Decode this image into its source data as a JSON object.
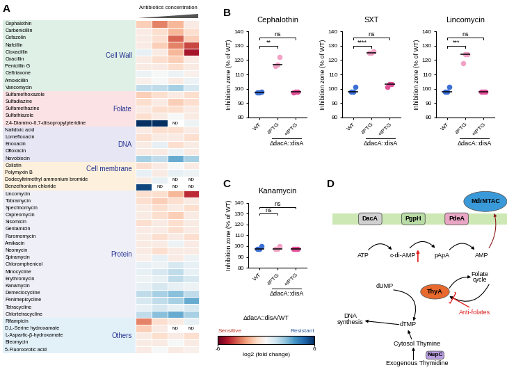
{
  "chart_data": [
    {
      "panel": "A",
      "type": "heatmap",
      "xlabel": "Antibiotics concentration",
      "na_label": "ND",
      "groups": [
        {
          "name": "Cell Wall",
          "color": "#dff0e6",
          "rows": [
            "Cephalothin",
            "Carbenicillin",
            "Cefazolin",
            "Nafcillin",
            "Cloxacillin",
            "Oxacillin",
            "Penicillin G",
            "Ceftriaxone",
            "Amoxicillin",
            "Vancomycin"
          ],
          "values": [
            [
              -1.5,
              -3,
              -2,
              -0.5
            ],
            [
              -0.5,
              -1,
              -2,
              -1
            ],
            [
              -0.5,
              -1,
              -3.5,
              -1.5
            ],
            [
              -0.5,
              -1.5,
              -3,
              -4
            ],
            [
              0.5,
              -0.5,
              -2,
              -5
            ],
            [
              -0.5,
              -1,
              -1.5,
              -0.5
            ],
            [
              -0.5,
              -0.5,
              -1,
              -0.5
            ],
            [
              0.3,
              0,
              0.3,
              -0.3
            ],
            [
              -0.3,
              0,
              -0.5,
              0.3
            ],
            [
              1.5,
              1.5,
              2,
              1
            ]
          ]
        },
        {
          "name": "Folate",
          "color": "#fbe2e4",
          "rows": [
            "Sulfamethoxazole",
            "Sulfadiazine",
            "Sulfamethazine",
            "Sulfathiazole",
            "2,4-Diamino-6,7-diisopropylpteridine"
          ],
          "values": [
            [
              -1.5,
              -1,
              -0.5,
              -1
            ],
            [
              -1,
              -0.5,
              -1.5,
              -1
            ],
            [
              -0.5,
              -1,
              -1,
              -0.5
            ],
            [
              -1,
              -0.5,
              0,
              -0.5
            ],
            [
              6,
              6,
              null,
              0.3
            ]
          ]
        },
        {
          "name": "DNA",
          "color": "#e7e6f4",
          "rows": [
            "Nalidixic acid",
            "Lomefloxacin",
            "Enoxacin",
            "Ofloxacin",
            "Novobiocin"
          ],
          "values": [
            [
              -0.5,
              -1,
              -1,
              -0.5
            ],
            [
              -1,
              -0.5,
              -0.5,
              -1
            ],
            [
              -0.5,
              0.5,
              -1,
              -0.5
            ],
            [
              -0.5,
              -0.5,
              0.3,
              -0.5
            ],
            [
              2,
              1.5,
              3,
              2
            ]
          ]
        },
        {
          "name": "Cell membrane",
          "color": "#fdf0dc",
          "rows": [
            "Colistin",
            "Polymyxin B",
            "Dodecyltrimethyl ammonium bromide",
            "Benzethonium chloride"
          ],
          "values": [
            [
              -1,
              -0.5,
              0,
              -0.5
            ],
            [
              0.5,
              -0.5,
              0.5,
              0.3
            ],
            [
              -0.5,
              0.5,
              null,
              null
            ],
            [
              5.5,
              null,
              null,
              null
            ]
          ]
        },
        {
          "name": "Protein",
          "color": "#efeff7",
          "rows": [
            "Lincomycin",
            "Tobramycin",
            "Spectinomycin",
            "Capreomycin",
            "Sisomicin",
            "Gentamicin",
            "Paromomycin",
            "Amikacin",
            "Neomycin",
            "Spiramycin",
            "Chloramphenicol",
            "Minocycline",
            "Erythromycin",
            "Kanamycin",
            "Demeclocycline",
            "Penimepicycline",
            "Tetracycline",
            "Chlortetracycline"
          ],
          "values": [
            [
              -1,
              -1,
              -2,
              -4.5
            ],
            [
              -1,
              -1.5,
              -1,
              -0.5
            ],
            [
              -0.5,
              -1,
              -0.5,
              -1
            ],
            [
              -0.5,
              -1,
              -1.5,
              -0.5
            ],
            [
              -1,
              -0.5,
              -1,
              -0.5
            ],
            [
              -0.5,
              -0.5,
              -1,
              -0.5
            ],
            [
              -0.5,
              -1,
              -0.5,
              -1
            ],
            [
              -0.5,
              -0.5,
              0.3,
              -0.5
            ],
            [
              -0.5,
              -1,
              -0.5,
              -0.5
            ],
            [
              -0.3,
              0.5,
              -0.5,
              0.3
            ],
            [
              0.5,
              0.3,
              1,
              0.5
            ],
            [
              0.5,
              1,
              1.5,
              0.5
            ],
            [
              0.3,
              0.5,
              1.5,
              1
            ],
            [
              0.5,
              1,
              0.5,
              0.3
            ],
            [
              1.5,
              2,
              2.5,
              1.5
            ],
            [
              1,
              1.5,
              2,
              3
            ],
            [
              0.5,
              1,
              0.5,
              1
            ],
            [
              1.5,
              2.5,
              3,
              2
            ]
          ]
        },
        {
          "name": "Others",
          "color": "#e2f0f8",
          "rows": [
            "Rifampicin",
            "D,L-Serine hydroxamate",
            "L-Aspartic-β-hydroxamate",
            "Bleomycin",
            "5-Fluoroorotic acid"
          ],
          "values": [
            [
              -3,
              -1,
              -0.5,
              0.5
            ],
            [
              -1.5,
              -0.5,
              null,
              null
            ],
            [
              -0.5,
              -1,
              -0.5,
              -1
            ],
            [
              -0.5,
              -0.5,
              0,
              -0.5
            ],
            [
              -0.5,
              0,
              -0.5,
              -0.3
            ]
          ]
        }
      ],
      "colorbar": {
        "title": "ΔdacA::disA/WT",
        "label": "log2 (fold change)",
        "range": [
          -6,
          6
        ],
        "ticks": [
          -6,
          6
        ],
        "low_label": "Sensitive",
        "high_label": "Resistant"
      }
    },
    {
      "panel": "B",
      "type": "scatter",
      "title": "Cephalothin",
      "ylabel": "Inhibition zone (% of WT)",
      "categories": [
        "WT",
        "-IPTG",
        "+IPTG"
      ],
      "values": [
        [
          97.5,
          97.5,
          98
        ],
        [
          116,
          117,
          122
        ],
        [
          97.5,
          98,
          98
        ]
      ],
      "colors": [
        "#3b6fd4",
        "#f2a2c6",
        "#e2509a"
      ],
      "marker": "circle",
      "ylim": [
        80,
        140
      ],
      "yticks": [
        80,
        90,
        100,
        110,
        120,
        130,
        140
      ],
      "group_label": {
        "text": "ΔdacA::disA",
        "categories": [
          "-IPTG",
          "+IPTG"
        ]
      },
      "comparisons": [
        {
          "categories": [
            "WT",
            "-IPTG"
          ],
          "label": "**"
        },
        {
          "categories": [
            "WT",
            "+IPTG"
          ],
          "label": "ns"
        }
      ]
    },
    {
      "type": "scatter",
      "title": "SXT",
      "ylabel": "Inhibition zone (% of WT)",
      "categories": [
        "WT",
        "-IPTG",
        "+IPTG"
      ],
      "values": [
        [
          98,
          98,
          101
        ],
        [
          125,
          125,
          126
        ],
        [
          101,
          103,
          103
        ]
      ],
      "colors": [
        "#3b6fd4",
        "#f2a2c6",
        "#e2509a"
      ],
      "marker": "circle",
      "ylim": [
        80,
        140
      ],
      "yticks": [
        80,
        90,
        100,
        110,
        120,
        130,
        140
      ],
      "group_label": {
        "text": "ΔdacA::disA",
        "categories": [
          "-IPTG",
          "+IPTG"
        ]
      },
      "comparisons": [
        {
          "categories": [
            "WT",
            "-IPTG"
          ],
          "label": "****"
        },
        {
          "categories": [
            "WT",
            "+IPTG"
          ],
          "label": "ns"
        }
      ]
    },
    {
      "type": "scatter",
      "title": "Lincomycin",
      "ylabel": "Inhibition zone (% of WT)",
      "categories": [
        "WT",
        "-IPTG",
        "+IPTG"
      ],
      "values": [
        [
          98,
          98,
          101
        ],
        [
          118,
          124,
          124
        ],
        [
          98,
          98,
          98
        ]
      ],
      "colors": [
        "#3b6fd4",
        "#f2a2c6",
        "#e2509a"
      ],
      "marker": "circle",
      "ylim": [
        80,
        140
      ],
      "yticks": [
        80,
        90,
        100,
        110,
        120,
        130,
        140
      ],
      "group_label": {
        "text": "ΔdacA::disA",
        "categories": [
          "-IPTG",
          "+IPTG"
        ]
      },
      "comparisons": [
        {
          "categories": [
            "WT",
            "-IPTG"
          ],
          "label": "***"
        },
        {
          "categories": [
            "WT",
            "+IPTG"
          ],
          "label": "ns"
        }
      ]
    },
    {
      "panel": "C",
      "type": "scatter",
      "title": "Kanamycin",
      "ylabel": "Inhibition zone (% of WT)",
      "categories": [
        "WT",
        "-IPTG",
        "+IPTG"
      ],
      "values": [
        [
          97.5,
          97.5,
          100
        ],
        [
          97.5,
          97.5,
          100
        ],
        [
          97.5,
          97.5,
          97.5
        ]
      ],
      "colors": [
        "#3b6fd4",
        "#f2a2c6",
        "#e2509a"
      ],
      "marker": "circle",
      "ylim": [
        80,
        140
      ],
      "yticks": [
        80,
        90,
        100,
        110,
        120,
        130,
        140
      ],
      "group_label": {
        "text": "ΔdacA::disA",
        "categories": [
          "-IPTG",
          "+IPTG"
        ]
      },
      "comparisons": [
        {
          "categories": [
            "WT",
            "-IPTG"
          ],
          "label": "ns"
        },
        {
          "categories": [
            "WT",
            "+IPTG"
          ],
          "label": "ns"
        }
      ]
    }
  ],
  "diagram": {
    "panel": "D",
    "nodes": [
      {
        "label": "DacA",
        "color": "#d0d0d0"
      },
      {
        "label": "PgpH",
        "color": "#b9dca6"
      },
      {
        "label": "PdeA",
        "color": "#e9a6c4"
      },
      {
        "label": "MdrMTAC",
        "color": "#3a9ad9"
      },
      {
        "label": "ATP"
      },
      {
        "label": "c-di-AMP"
      },
      {
        "label": "pApA"
      },
      {
        "label": "AMP"
      },
      {
        "label": "dUMP"
      },
      {
        "label": "ThyA",
        "color": "#e8692e"
      },
      {
        "label": "Folate\ncycle"
      },
      {
        "label": "Anti-folates",
        "color": "#e02020"
      },
      {
        "label": "DNA\nsynthesis"
      },
      {
        "label": "dTMP"
      },
      {
        "label": "Cytosol Thymine"
      },
      {
        "label": "NupC",
        "color": "#b89ee0"
      },
      {
        "label": "Exogenous Thymidine"
      }
    ]
  }
}
